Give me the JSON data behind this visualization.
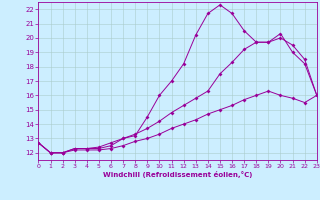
{
  "xlabel": "Windchill (Refroidissement éolien,°C)",
  "bg_color": "#cceeff",
  "line_color": "#990099",
  "grid_color": "#aacccc",
  "x_min": 0,
  "x_max": 23,
  "y_min": 11.5,
  "y_max": 22.5,
  "y_ticks": [
    12,
    13,
    14,
    15,
    16,
    17,
    18,
    19,
    20,
    21,
    22
  ],
  "x_ticks": [
    0,
    1,
    2,
    3,
    4,
    5,
    6,
    7,
    8,
    9,
    10,
    11,
    12,
    13,
    14,
    15,
    16,
    17,
    18,
    19,
    20,
    21,
    22,
    23
  ],
  "series1_x": [
    0,
    1,
    2,
    3,
    4,
    5,
    6,
    7,
    8,
    9,
    10,
    11,
    12,
    13,
    14,
    15,
    16,
    17,
    18,
    19,
    20,
    21,
    22,
    23
  ],
  "series1_y": [
    12.7,
    12.0,
    12.0,
    12.3,
    12.3,
    12.3,
    12.5,
    13.0,
    13.2,
    14.5,
    16.0,
    17.0,
    18.2,
    20.2,
    21.7,
    22.3,
    21.7,
    20.5,
    19.7,
    19.7,
    20.3,
    19.0,
    18.2,
    16.0
  ],
  "series2_x": [
    0,
    1,
    2,
    3,
    4,
    5,
    6,
    7,
    8,
    9,
    10,
    11,
    12,
    13,
    14,
    15,
    16,
    17,
    18,
    19,
    20,
    21,
    22,
    23
  ],
  "series2_y": [
    12.7,
    12.0,
    12.0,
    12.2,
    12.2,
    12.2,
    12.3,
    12.5,
    12.8,
    13.0,
    13.3,
    13.7,
    14.0,
    14.3,
    14.7,
    15.0,
    15.3,
    15.7,
    16.0,
    16.3,
    16.0,
    15.8,
    15.5,
    16.0
  ],
  "series3_x": [
    0,
    1,
    2,
    3,
    4,
    5,
    6,
    7,
    8,
    9,
    10,
    11,
    12,
    13,
    14,
    15,
    16,
    17,
    18,
    19,
    20,
    21,
    22,
    23
  ],
  "series3_y": [
    12.7,
    12.0,
    12.0,
    12.3,
    12.3,
    12.4,
    12.7,
    13.0,
    13.3,
    13.7,
    14.2,
    14.8,
    15.3,
    15.8,
    16.3,
    17.5,
    18.3,
    19.2,
    19.7,
    19.7,
    20.0,
    19.5,
    18.5,
    16.0
  ]
}
